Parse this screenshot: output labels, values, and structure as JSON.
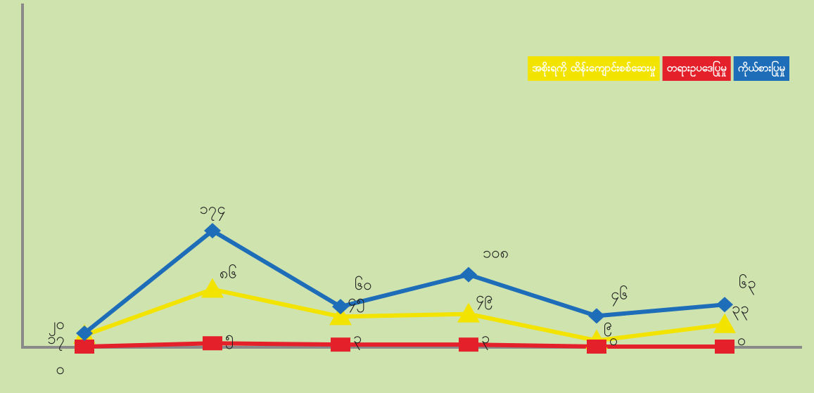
{
  "chart_data": {
    "type": "line",
    "categories": [
      null,
      null,
      null,
      null,
      null,
      null
    ],
    "ylim": [
      0,
      515
    ],
    "series": [
      {
        "name": "အစိုးရကို ထိန်းကျောင်းစစ်ဆေးမှု",
        "color": "#f3e300",
        "marker": "triangle",
        "values": [
          17,
          86,
          45,
          49,
          9,
          33
        ],
        "value_labels": [
          "၁၇",
          "၈၆",
          "၄၅",
          "၄၉",
          "၉",
          "၃၃"
        ]
      },
      {
        "name": "တရားဥပဒေပြုမှု",
        "color": "#e4202a",
        "marker": "square",
        "values": [
          0,
          5,
          3,
          3,
          0,
          0
        ],
        "value_labels": [
          "၀",
          "၅",
          "၃",
          "၃",
          "၀",
          "၀"
        ]
      },
      {
        "name": "ကိုယ်စားပြုမှု",
        "color": "#1e6db8",
        "marker": "diamond",
        "values": [
          20,
          174,
          60,
          108,
          46,
          63
        ],
        "value_labels": [
          "၂၀",
          "၁၇၄",
          "၆၀",
          "၁၀၈",
          "၄၆",
          "၆၃"
        ]
      }
    ]
  }
}
